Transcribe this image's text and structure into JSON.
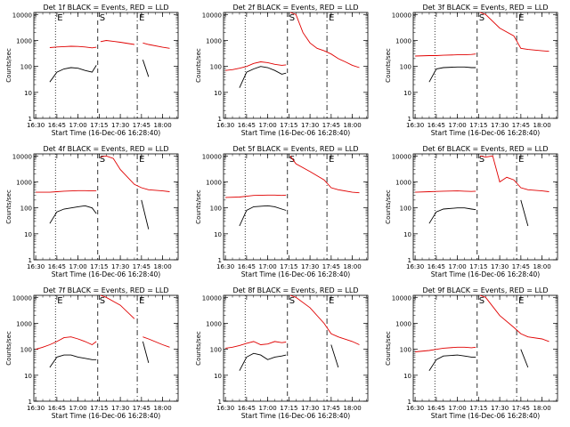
{
  "figure": {
    "xlabel": "Start Time (16-Dec-06 16:28:40)",
    "ylabel": "Counts/sec",
    "x_ticks": [
      "16:30",
      "16:45",
      "17:00",
      "17:15",
      "17:30",
      "17:45",
      "18:00"
    ],
    "y_ticks": [
      "1",
      "10",
      "100",
      "1000",
      "10000"
    ],
    "colors": {
      "events": "#000000",
      "lld": "#e00000",
      "axes": "#000000"
    }
  },
  "chart_data": [
    {
      "type": "line",
      "title": "Det 1f BLACK = Events, RED = LLD",
      "xlabel": "Start Time (16-Dec-06 16:28:40)",
      "ylabel": "Counts/sec",
      "xlim": [
        "16:28:40",
        "18:11:00"
      ],
      "ylim": [
        1,
        12000
      ],
      "yscale": "log",
      "markers": [
        {
          "time": "16:44:00",
          "style": "dotted",
          "label": "E"
        },
        {
          "time": "17:14:00",
          "style": "dashed",
          "label": "S"
        },
        {
          "time": "17:42:00",
          "style": "dash-dot",
          "label": "E"
        }
      ],
      "x": [
        "16:40",
        "16:45",
        "16:50",
        "16:55",
        "17:00",
        "17:05",
        "17:10",
        "17:13",
        "17:14",
        "17:16",
        "17:20",
        "17:30",
        "17:40",
        "17:42",
        "17:46",
        "17:50",
        "18:00",
        "18:05"
      ],
      "series": [
        {
          "name": "LLD",
          "color": "#e00000",
          "values": [
            530,
            560,
            580,
            600,
            590,
            560,
            520,
            550,
            null,
            900,
            1000,
            850,
            700,
            null,
            800,
            700,
            550,
            500
          ]
        },
        {
          "name": "Events",
          "color": "#000000",
          "values": [
            25,
            60,
            80,
            90,
            85,
            70,
            60,
            110,
            null,
            null,
            null,
            null,
            null,
            null,
            180,
            40,
            null,
            null
          ]
        }
      ]
    },
    {
      "type": "line",
      "title": "Det 2f BLACK = Events, RED = LLD",
      "xlabel": "Start Time (16-Dec-06 16:28:40)",
      "ylabel": "Counts/sec",
      "xlim": [
        "16:28:40",
        "18:11:00"
      ],
      "ylim": [
        1,
        12000
      ],
      "yscale": "log",
      "markers": [
        {
          "time": "16:44:00",
          "style": "dotted",
          "label": ""
        },
        {
          "time": "17:14:00",
          "style": "dashed",
          "label": "S"
        },
        {
          "time": "17:42:00",
          "style": "dash-dot",
          "label": "E"
        }
      ],
      "x": [
        "16:30",
        "16:35",
        "16:40",
        "16:45",
        "16:50",
        "16:55",
        "17:00",
        "17:05",
        "17:10",
        "17:13",
        "17:14",
        "17:16",
        "17:20",
        "17:25",
        "17:30",
        "17:35",
        "17:40",
        "17:45",
        "17:50",
        "17:55",
        "18:00",
        "18:05"
      ],
      "series": [
        {
          "name": "LLD",
          "color": "#e00000",
          "values": [
            70,
            75,
            85,
            100,
            130,
            150,
            140,
            120,
            110,
            115,
            null,
            12000,
            10000,
            2000,
            800,
            500,
            400,
            300,
            200,
            150,
            110,
            90
          ]
        },
        {
          "name": "Events",
          "color": "#000000",
          "values": [
            null,
            null,
            15,
            60,
            80,
            100,
            90,
            70,
            50,
            55,
            null,
            null,
            null,
            null,
            null,
            null,
            null,
            null,
            30,
            null,
            null,
            null
          ]
        }
      ]
    },
    {
      "type": "line",
      "title": "Det 3f BLACK = Events, RED = LLD",
      "xlabel": "Start Time (16-Dec-06 16:28:40)",
      "ylabel": "Counts/sec",
      "xlim": [
        "16:28:40",
        "18:11:00"
      ],
      "ylim": [
        1,
        12000
      ],
      "yscale": "log",
      "markers": [
        {
          "time": "16:44:00",
          "style": "dotted",
          "label": ""
        },
        {
          "time": "17:14:00",
          "style": "dashed",
          "label": "S"
        },
        {
          "time": "17:42:00",
          "style": "dash-dot",
          "label": "E"
        }
      ],
      "x": [
        "16:30",
        "16:40",
        "16:45",
        "16:50",
        "17:00",
        "17:05",
        "17:10",
        "17:13",
        "17:14",
        "17:16",
        "17:20",
        "17:30",
        "17:40",
        "17:45",
        "17:50",
        "18:00",
        "18:05"
      ],
      "series": [
        {
          "name": "LLD",
          "color": "#e00000",
          "values": [
            250,
            260,
            260,
            270,
            280,
            280,
            290,
            300,
            null,
            12000,
            10000,
            3000,
            1500,
            500,
            450,
            400,
            380
          ]
        },
        {
          "name": "Events",
          "color": "#000000",
          "values": [
            null,
            25,
            80,
            90,
            95,
            95,
            90,
            90,
            null,
            null,
            null,
            null,
            null,
            null,
            null,
            null,
            null
          ]
        }
      ]
    },
    {
      "type": "line",
      "title": "Det 4f BLACK = Events, RED = LLD",
      "xlabel": "Start Time (16-Dec-06 16:28:40)",
      "ylabel": "Counts/sec",
      "xlim": [
        "16:28:40",
        "18:11:00"
      ],
      "ylim": [
        1,
        12000
      ],
      "yscale": "log",
      "markers": [
        {
          "time": "16:44:00",
          "style": "dotted",
          "label": ""
        },
        {
          "time": "17:14:00",
          "style": "dashed",
          "label": "S"
        },
        {
          "time": "17:42:00",
          "style": "dash-dot",
          "label": "E"
        }
      ],
      "x": [
        "16:30",
        "16:40",
        "16:45",
        "16:50",
        "17:00",
        "17:05",
        "17:10",
        "17:13",
        "17:14",
        "17:16",
        "17:20",
        "17:25",
        "17:30",
        "17:40",
        "17:45",
        "17:50",
        "18:00",
        "18:05"
      ],
      "series": [
        {
          "name": "LLD",
          "color": "#e00000",
          "values": [
            400,
            400,
            420,
            440,
            460,
            460,
            450,
            460,
            null,
            9000,
            10000,
            8000,
            3000,
            800,
            600,
            500,
            450,
            420
          ]
        },
        {
          "name": "Events",
          "color": "#000000",
          "values": [
            null,
            25,
            70,
            90,
            110,
            120,
            100,
            60,
            null,
            null,
            null,
            null,
            null,
            null,
            200,
            15,
            null,
            null
          ]
        }
      ]
    },
    {
      "type": "line",
      "title": "Det 5f BLACK = Events, RED = LLD",
      "xlabel": "Start Time (16-Dec-06 16:28:40)",
      "ylabel": "Counts/sec",
      "xlim": [
        "16:28:40",
        "18:11:00"
      ],
      "ylim": [
        1,
        12000
      ],
      "yscale": "log",
      "markers": [
        {
          "time": "16:44:00",
          "style": "dotted",
          "label": ""
        },
        {
          "time": "17:14:00",
          "style": "dashed",
          "label": "S"
        },
        {
          "time": "17:42:00",
          "style": "dash-dot",
          "label": "E"
        }
      ],
      "x": [
        "16:30",
        "16:40",
        "16:45",
        "16:50",
        "17:00",
        "17:05",
        "17:10",
        "17:13",
        "17:14",
        "17:16",
        "17:20",
        "17:30",
        "17:40",
        "17:45",
        "17:50",
        "18:00",
        "18:05"
      ],
      "series": [
        {
          "name": "LLD",
          "color": "#e00000",
          "values": [
            250,
            260,
            280,
            300,
            310,
            310,
            300,
            310,
            null,
            10000,
            5000,
            2500,
            1200,
            600,
            500,
            400,
            380
          ]
        },
        {
          "name": "Events",
          "color": "#000000",
          "values": [
            null,
            20,
            80,
            110,
            120,
            110,
            90,
            80,
            null,
            null,
            null,
            null,
            null,
            null,
            null,
            null,
            null
          ]
        }
      ]
    },
    {
      "type": "line",
      "title": "Det 6f BLACK = Events, RED = LLD",
      "xlabel": "Start Time (16-Dec-06 16:28:40)",
      "ylabel": "Counts/sec",
      "xlim": [
        "16:28:40",
        "18:11:00"
      ],
      "ylim": [
        1,
        12000
      ],
      "yscale": "log",
      "markers": [
        {
          "time": "16:44:00",
          "style": "dotted",
          "label": ""
        },
        {
          "time": "17:14:00",
          "style": "dashed",
          "label": "S"
        },
        {
          "time": "17:42:00",
          "style": "dash-dot",
          "label": "E"
        }
      ],
      "x": [
        "16:30",
        "16:40",
        "16:45",
        "16:50",
        "17:00",
        "17:05",
        "17:10",
        "17:13",
        "17:14",
        "17:16",
        "17:20",
        "17:25",
        "17:30",
        "17:35",
        "17:40",
        "17:45",
        "17:50",
        "18:00",
        "18:05"
      ],
      "series": [
        {
          "name": "LLD",
          "color": "#e00000",
          "values": [
            400,
            420,
            430,
            440,
            450,
            440,
            430,
            440,
            null,
            10000,
            9000,
            10000,
            1000,
            1500,
            1200,
            600,
            500,
            450,
            420
          ]
        },
        {
          "name": "Events",
          "color": "#000000",
          "values": [
            null,
            25,
            70,
            90,
            100,
            100,
            90,
            85,
            null,
            null,
            null,
            null,
            null,
            null,
            null,
            200,
            20,
            null,
            null
          ]
        }
      ]
    },
    {
      "type": "line",
      "title": "Det 7f BLACK = Events, RED = LLD",
      "xlabel": "Start Time (16-Dec-06 16:28:40)",
      "ylabel": "Counts/sec",
      "xlim": [
        "16:28:40",
        "18:11:00"
      ],
      "ylim": [
        1,
        12000
      ],
      "yscale": "log",
      "markers": [
        {
          "time": "16:44:00",
          "style": "dotted",
          "label": "E"
        },
        {
          "time": "17:14:00",
          "style": "dashed",
          "label": "S"
        },
        {
          "time": "17:42:00",
          "style": "dash-dot",
          "label": "E"
        }
      ],
      "x": [
        "16:30",
        "16:35",
        "16:40",
        "16:45",
        "16:50",
        "16:55",
        "17:00",
        "17:05",
        "17:10",
        "17:13",
        "17:14",
        "17:16",
        "17:20",
        "17:30",
        "17:40",
        "17:42",
        "17:46",
        "17:50",
        "18:00",
        "18:05"
      ],
      "series": [
        {
          "name": "LLD",
          "color": "#e00000",
          "values": [
            100,
            120,
            150,
            200,
            280,
            300,
            250,
            200,
            150,
            200,
            null,
            12000,
            10000,
            5000,
            1500,
            null,
            300,
            250,
            150,
            120
          ]
        },
        {
          "name": "Events",
          "color": "#000000",
          "values": [
            null,
            null,
            20,
            50,
            60,
            60,
            50,
            45,
            40,
            40,
            null,
            null,
            null,
            null,
            null,
            null,
            200,
            30,
            null,
            null
          ]
        }
      ]
    },
    {
      "type": "line",
      "title": "Det 8f BLACK = Events, RED = LLD",
      "xlabel": "Start Time (16-Dec-06 16:28:40)",
      "ylabel": "Counts/sec",
      "xlim": [
        "16:28:40",
        "18:11:00"
      ],
      "ylim": [
        1,
        12000
      ],
      "yscale": "log",
      "markers": [
        {
          "time": "16:44:00",
          "style": "dotted",
          "label": ""
        },
        {
          "time": "17:14:00",
          "style": "dashed",
          "label": "S"
        },
        {
          "time": "17:42:00",
          "style": "dash-dot",
          "label": "E"
        }
      ],
      "x": [
        "16:30",
        "16:35",
        "16:40",
        "16:45",
        "16:50",
        "16:55",
        "17:00",
        "17:05",
        "17:10",
        "17:13",
        "17:14",
        "17:16",
        "17:20",
        "17:30",
        "17:40",
        "17:45",
        "17:50",
        "18:00",
        "18:05"
      ],
      "series": [
        {
          "name": "LLD",
          "color": "#e00000",
          "values": [
            110,
            120,
            140,
            170,
            200,
            150,
            160,
            200,
            180,
            190,
            null,
            12000,
            10000,
            4000,
            1000,
            400,
            300,
            200,
            150
          ]
        },
        {
          "name": "Events",
          "color": "#000000",
          "values": [
            null,
            null,
            15,
            50,
            70,
            60,
            40,
            50,
            55,
            60,
            null,
            null,
            null,
            null,
            null,
            150,
            20,
            null,
            null
          ]
        }
      ]
    },
    {
      "type": "line",
      "title": "Det 9f BLACK = Events, RED = LLD",
      "xlabel": "Start Time (16-Dec-06 16:28:40)",
      "ylabel": "Counts/sec",
      "xlim": [
        "16:28:40",
        "18:11:00"
      ],
      "ylim": [
        1,
        12000
      ],
      "yscale": "log",
      "markers": [
        {
          "time": "16:44:00",
          "style": "dotted",
          "label": ""
        },
        {
          "time": "17:14:00",
          "style": "dashed",
          "label": "S"
        },
        {
          "time": "17:42:00",
          "style": "dash-dot",
          "label": "E"
        }
      ],
      "x": [
        "16:30",
        "16:40",
        "16:45",
        "16:50",
        "17:00",
        "17:05",
        "17:10",
        "17:13",
        "17:14",
        "17:16",
        "17:20",
        "17:30",
        "17:40",
        "17:45",
        "17:50",
        "18:00",
        "18:05"
      ],
      "series": [
        {
          "name": "LLD",
          "color": "#e00000",
          "values": [
            80,
            90,
            100,
            110,
            120,
            120,
            115,
            120,
            null,
            12000,
            10000,
            2000,
            700,
            400,
            300,
            250,
            200
          ]
        },
        {
          "name": "Events",
          "color": "#000000",
          "values": [
            null,
            15,
            40,
            55,
            60,
            55,
            50,
            50,
            null,
            null,
            null,
            null,
            null,
            100,
            20,
            null,
            null
          ]
        }
      ]
    }
  ]
}
